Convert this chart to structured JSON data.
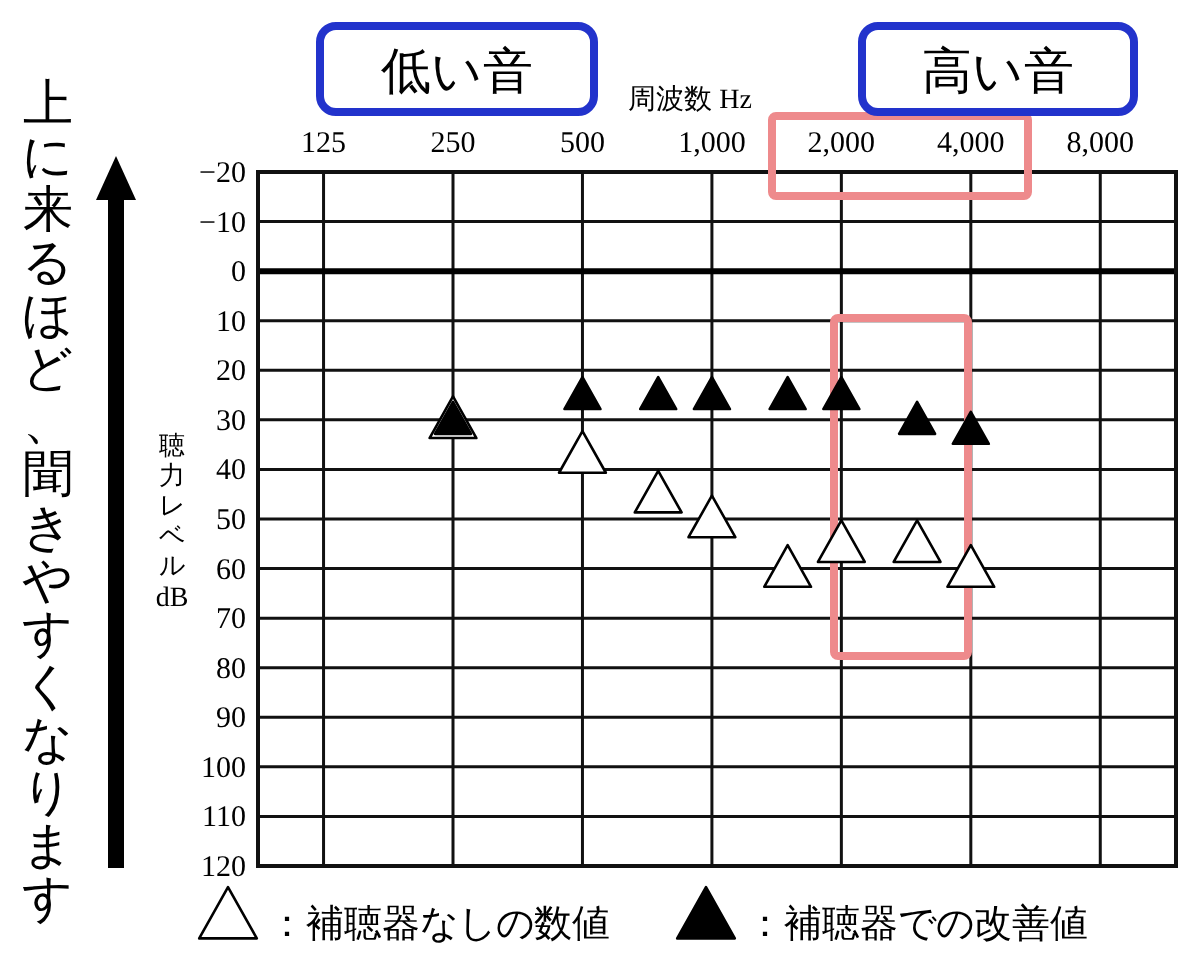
{
  "chart_data": {
    "type": "scatter",
    "xlabel": "周波数 Hz",
    "ylabel": "聴力レベル dB",
    "log": "x",
    "xlim": [
      88,
      12000
    ],
    "xticks": [
      {
        "value": 125,
        "label": "125"
      },
      {
        "value": 250,
        "label": "250"
      },
      {
        "value": 500,
        "label": "500"
      },
      {
        "value": 1000,
        "label": "1,000"
      },
      {
        "value": 2000,
        "label": "2,000"
      },
      {
        "value": 4000,
        "label": "4,000"
      },
      {
        "value": 8000,
        "label": "8,000"
      }
    ],
    "ylim": [
      120,
      -20
    ],
    "yticks": [
      {
        "value": -20,
        "label": "−20"
      },
      {
        "value": -10,
        "label": "−10"
      },
      0,
      10,
      20,
      30,
      40,
      50,
      60,
      70,
      80,
      90,
      100,
      110,
      120
    ],
    "grid": true,
    "marker": "triangle",
    "legend": "bottom",
    "ref_lines": [
      {
        "axis": "y",
        "value": 0
      }
    ],
    "annotations": [
      "低い音",
      "高い音",
      "上に来るほど、聞きやすくなります"
    ],
    "series": [
      {
        "name": "：補聴器なしの数値",
        "color": "#ffffff",
        "x": [
          250,
          500,
          750,
          1000,
          1500,
          2000,
          3000,
          4000
        ],
        "values": [
          30,
          37,
          45,
          50,
          60,
          55,
          55,
          60
        ]
      },
      {
        "name": "：補聴器での改善値",
        "color": "#000000",
        "x": [
          250,
          500,
          750,
          1000,
          1500,
          2000,
          3000,
          4000
        ],
        "values": [
          30,
          25,
          25,
          25,
          25,
          25,
          30,
          32
        ]
      }
    ]
  }
}
